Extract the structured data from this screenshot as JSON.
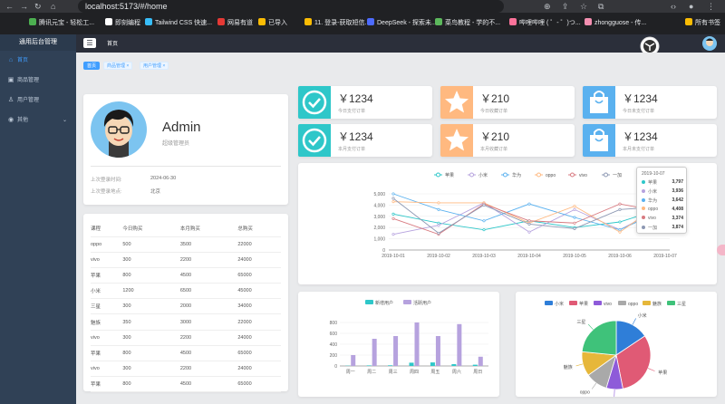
{
  "browser": {
    "url": "localhost:5173/#/home",
    "bookmarks": [
      {
        "label": "腾讯元宝 - 轻松工...",
        "color": "#4caf50"
      },
      {
        "label": "即刻编程",
        "color": "#fff"
      },
      {
        "label": "Tailwind CSS 快速...",
        "color": "#38bdf8"
      },
      {
        "label": "网易有道",
        "color": "#e53935"
      },
      {
        "label": "已导入",
        "color": "#fbbc04"
      },
      {
        "label": "11. 登录-获取短信...",
        "color": "#fbbc04"
      },
      {
        "label": "DeepSeek - 探索未...",
        "color": "#4d6bfe"
      },
      {
        "label": "菜鸟教程 - 学的不...",
        "color": "#5cb85c"
      },
      {
        "label": "哔哩哔哩 ( ゜- ゜)つ...",
        "color": "#fb7299"
      },
      {
        "label": "zhongguose - 传...",
        "color": "#f48fb1"
      },
      {
        "label": "所有书签",
        "color": "#fbbc04"
      }
    ]
  },
  "sidebar": {
    "brand": "通用后台管理",
    "items": [
      {
        "label": "首页",
        "icon": "home-icon",
        "glyph": "⌂",
        "active": true
      },
      {
        "label": "商品管理",
        "icon": "video-icon",
        "glyph": "▣",
        "active": false
      },
      {
        "label": "用户管理",
        "icon": "user-icon",
        "glyph": "♙",
        "active": false
      },
      {
        "label": "其他",
        "icon": "location-icon",
        "glyph": "◉",
        "active": false,
        "expandable": true
      }
    ]
  },
  "header": {
    "breadcrumb": "首页"
  },
  "tags": [
    {
      "label": "首页",
      "active": true,
      "closable": false
    },
    {
      "label": "商品管理",
      "active": false,
      "closable": true
    },
    {
      "label": "用户管理",
      "active": false,
      "closable": true
    }
  ],
  "profile": {
    "name": "Admin",
    "role": "超级管理员",
    "last_login_time_label": "上次登录时间:",
    "last_login_time": "2024-06-30",
    "last_login_place_label": "上次登录地点:",
    "last_login_place": "北京"
  },
  "table": {
    "headers": [
      "课程",
      "今日购买",
      "本月购买",
      "总购买"
    ],
    "rows": [
      [
        "oppo",
        "500",
        "3500",
        "22000"
      ],
      [
        "vivo",
        "300",
        "2200",
        "24000"
      ],
      [
        "苹果",
        "800",
        "4500",
        "65000"
      ],
      [
        "小米",
        "1200",
        "6500",
        "45000"
      ],
      [
        "三星",
        "300",
        "2000",
        "34000"
      ],
      [
        "魅族",
        "350",
        "3000",
        "22000"
      ],
      [
        "vivo",
        "300",
        "2200",
        "24000"
      ],
      [
        "苹果",
        "800",
        "4500",
        "65000"
      ],
      [
        "vivo",
        "300",
        "2200",
        "24000"
      ],
      [
        "苹果",
        "800",
        "4500",
        "65000"
      ]
    ]
  },
  "stats": [
    {
      "value": "￥1234",
      "label": "今日支付订单",
      "color": "#2ec7c9",
      "icon": "check-circle-icon"
    },
    {
      "value": "￥210",
      "label": "今日收藏订单",
      "color": "#ffb980",
      "icon": "star-icon"
    },
    {
      "value": "￥1234",
      "label": "今日未支付订单",
      "color": "#5ab1ef",
      "icon": "shopping-bag-icon"
    },
    {
      "value": "￥1234",
      "label": "本月支付订单",
      "color": "#2ec7c9",
      "icon": "check-circle-icon"
    },
    {
      "value": "￥210",
      "label": "本月收藏订单",
      "color": "#ffb980",
      "icon": "star-icon"
    },
    {
      "value": "￥1234",
      "label": "本月未支付订单",
      "color": "#5ab1ef",
      "icon": "shopping-bag-icon"
    }
  ],
  "chart_data": [
    {
      "type": "line",
      "x": [
        "2019-10-01",
        "2019-10-02",
        "2019-10-03",
        "2019-10-04",
        "2019-10-05",
        "2019-10-06",
        "2019-10-07"
      ],
      "ylim": [
        0,
        5000
      ],
      "yticks": [
        "5,000",
        "4,000",
        "3,000",
        "2,000",
        "1,000",
        "0"
      ],
      "legend_position": "top",
      "series": [
        {
          "name": "苹果",
          "color": "#2ec7c9",
          "values": [
            3200,
            2400,
            1800,
            2600,
            2000,
            2500,
            3797
          ]
        },
        {
          "name": "小米",
          "color": "#b6a2de",
          "values": [
            1400,
            2200,
            4200,
            1600,
            3600,
            1800,
            3936
          ]
        },
        {
          "name": "华为",
          "color": "#5ab1ef",
          "values": [
            5000,
            3600,
            2600,
            4100,
            2900,
            1800,
            3642
          ]
        },
        {
          "name": "oppo",
          "color": "#ffb980",
          "values": [
            4300,
            4200,
            4200,
            2400,
            3900,
            1600,
            4408
          ]
        },
        {
          "name": "vivo",
          "color": "#d87a80",
          "values": [
            2800,
            1400,
            4100,
            2600,
            2400,
            4100,
            3374
          ]
        },
        {
          "name": "一加",
          "color": "#8d98b3",
          "values": [
            4600,
            1500,
            4000,
            2300,
            1900,
            3600,
            3874
          ]
        }
      ],
      "tooltip": {
        "title": "2019-10-07"
      }
    },
    {
      "type": "bar",
      "categories": [
        "周一",
        "周二",
        "周三",
        "周四",
        "周五",
        "周六",
        "周日"
      ],
      "ylim": [
        0,
        800
      ],
      "yticks": [
        "800",
        "600",
        "400",
        "200",
        "0"
      ],
      "legend_position": "top",
      "series": [
        {
          "name": "新增用户",
          "color": "#2ec7c9",
          "values": [
            5,
            10,
            12,
            60,
            65,
            33,
            23
          ]
        },
        {
          "name": "活跃用户",
          "color": "#b6a2de",
          "values": [
            200,
            500,
            550,
            800,
            550,
            770,
            170
          ]
        }
      ]
    },
    {
      "type": "pie",
      "legend_position": "top",
      "slices": [
        {
          "name": "小米",
          "color": "#2f7ed8",
          "value": 2999
        },
        {
          "name": "苹果",
          "color": "#e05a75",
          "value": 5999
        },
        {
          "name": "vivo",
          "color": "#8e5bd9",
          "value": 1500
        },
        {
          "name": "oppo",
          "color": "#a9a9a9",
          "value": 1999
        },
        {
          "name": "魅族",
          "color": "#e6b73a",
          "value": 2200
        },
        {
          "name": "三星",
          "color": "#3fc27a",
          "value": 4500
        }
      ]
    }
  ]
}
